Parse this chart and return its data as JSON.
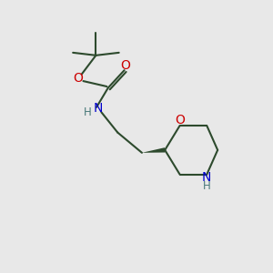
{
  "bg_color": "#e8e8e8",
  "bond_color": "#2d4a2d",
  "O_color": "#cc0000",
  "N_color": "#0000cc",
  "H_color": "#4a7a7a",
  "line_width": 1.5,
  "font_size_atom": 10,
  "fig_bg": "#e8e8e8",
  "xlim": [
    0,
    10
  ],
  "ylim": [
    0,
    10
  ]
}
